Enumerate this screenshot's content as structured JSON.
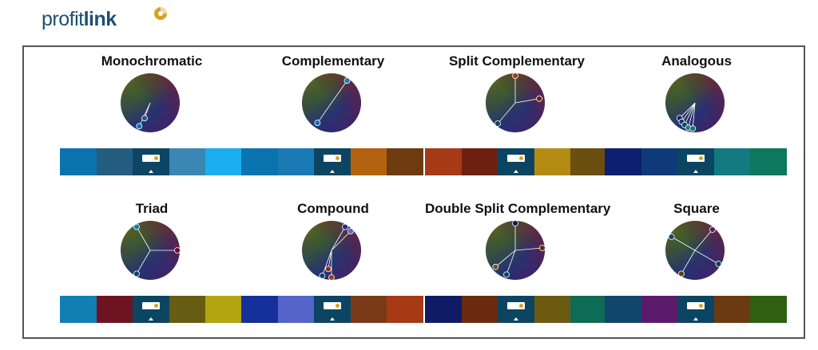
{
  "brand": {
    "name_light": "profit",
    "name_bold": "link",
    "color": "#1d4f73",
    "accent": "#d8a21f"
  },
  "schemes": [
    {
      "title": "Monochromatic",
      "colors": [
        "#0a73b0",
        "#245d80",
        "#0d4565",
        "#3a87b3",
        "#1aaef0"
      ]
    },
    {
      "title": "Complementary",
      "colors": [
        "#0a73b0",
        "#1a7ab4",
        "#0b4562",
        "#b3620f",
        "#6e3a10"
      ]
    },
    {
      "title": "Split Complementary",
      "colors": [
        "#a63a17",
        "#6e2010",
        "#0b4562",
        "#b38b12",
        "#6b4f0f"
      ]
    },
    {
      "title": "Analogous",
      "colors": [
        "#0d1f6e",
        "#0e3a7a",
        "#0b4562",
        "#127a80",
        "#0f7660"
      ]
    },
    {
      "title": "Triad",
      "colors": [
        "#127fb3",
        "#6e1320",
        "#0b4562",
        "#665d12",
        "#b3a510"
      ]
    },
    {
      "title": "Compound",
      "colors": [
        "#15309a",
        "#5564c8",
        "#0b4562",
        "#7a3a18",
        "#a53a15"
      ]
    },
    {
      "title": "Double Split Complementary",
      "colors": [
        "#101b66",
        "#6b2a10",
        "#0b4562",
        "#6b5a10",
        "#0e6b55"
      ]
    },
    {
      "title": "Square",
      "colors": [
        "#12456b",
        "#5b1a6b",
        "#0b4562",
        "#6b3a12",
        "#2f6010"
      ]
    }
  ]
}
